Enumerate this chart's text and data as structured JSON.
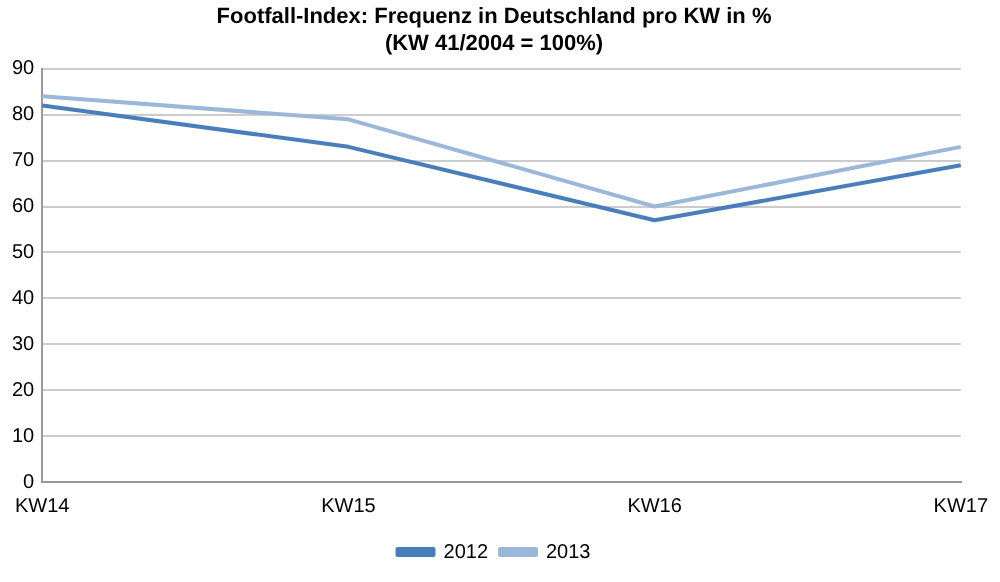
{
  "chart_data": {
    "type": "line",
    "title": "Footfall-Index: Frequenz in Deutschland pro KW in %",
    "subtitle": "(KW 41/2004 = 100%)",
    "categories": [
      "KW14",
      "KW15",
      "KW16",
      "KW17"
    ],
    "series": [
      {
        "name": "2012",
        "color": "#4a7ebb",
        "values": [
          82,
          73,
          57,
          69
        ]
      },
      {
        "name": "2013",
        "color": "#9bb7d9",
        "values": [
          84,
          79,
          60,
          73
        ]
      }
    ],
    "ylim": [
      0,
      90
    ],
    "yticks": [
      0,
      10,
      20,
      30,
      40,
      50,
      60,
      70,
      80,
      90
    ],
    "grid": "y",
    "legend": "bottom",
    "marker": "none",
    "line_style": "solid"
  }
}
